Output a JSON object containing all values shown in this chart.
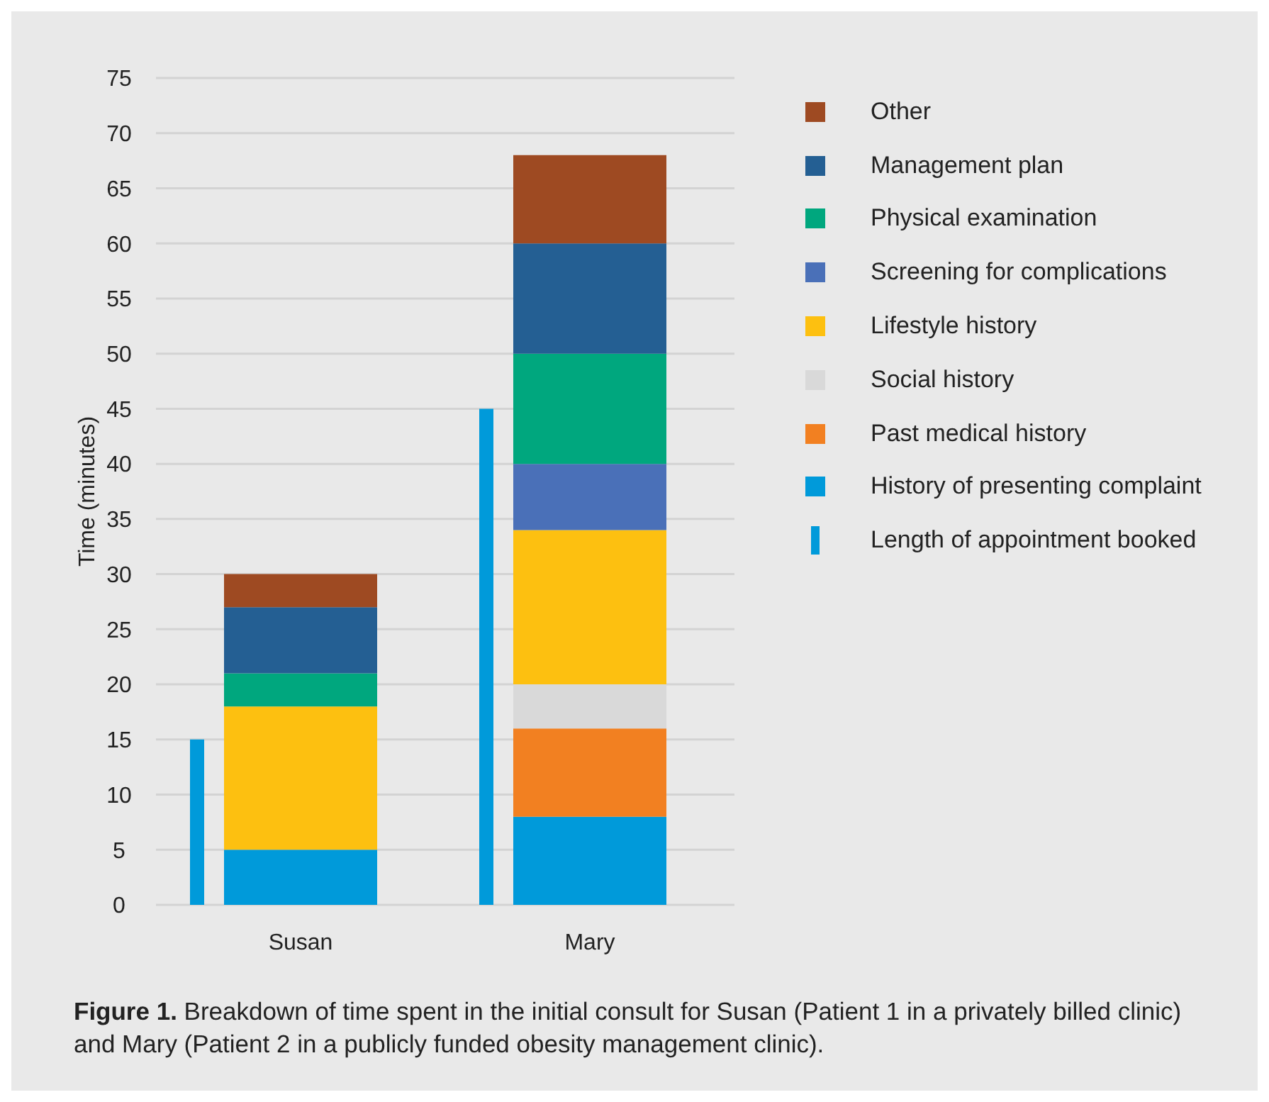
{
  "chart_data": {
    "type": "bar",
    "categories": [
      "Susan",
      "Mary"
    ],
    "ylabel": "Time (minutes)",
    "ylim": [
      0,
      75
    ],
    "yticks": [
      0,
      5,
      10,
      15,
      20,
      25,
      30,
      35,
      40,
      45,
      50,
      55,
      60,
      65,
      70,
      75
    ],
    "grid": "y",
    "legend": "right",
    "series": [
      {
        "name": "Length of appointment booked",
        "color": "#009ada",
        "values": [
          15,
          45
        ]
      },
      {
        "name": "History of presenting complaint",
        "color": "#009ada",
        "values": [
          5,
          8
        ],
        "base": [
          0,
          0
        ]
      },
      {
        "name": "Past medical history",
        "color": "#f28021",
        "values": [
          null,
          8
        ],
        "base": [
          null,
          8
        ]
      },
      {
        "name": "Social history",
        "color": "#d9d9d9",
        "values": [
          null,
          4
        ],
        "base": [
          null,
          16
        ]
      },
      {
        "name": "Lifestyle history",
        "color": "#fdc010",
        "values": [
          13,
          14
        ],
        "base": [
          5,
          20
        ]
      },
      {
        "name": "Screening for complications",
        "color": "#4a70b8",
        "values": [
          null,
          6
        ],
        "base": [
          null,
          34
        ]
      },
      {
        "name": "Physical examination",
        "color": "#00a77e",
        "values": [
          3,
          10
        ],
        "base": [
          18,
          40
        ]
      },
      {
        "name": "Management plan",
        "color": "#245f93",
        "values": [
          6,
          10
        ],
        "base": [
          21,
          50
        ]
      },
      {
        "name": "Other",
        "color": "#9e4a22",
        "values": [
          3,
          8
        ],
        "base": [
          27,
          60
        ]
      }
    ],
    "annotations": [
      "Figure 1. Breakdown of time spent in the initial consult for Susan (Patient 1 in a privately billed clinic) and Mary (Patient 2 in a publicly funded obesity management clinic)."
    ]
  }
}
